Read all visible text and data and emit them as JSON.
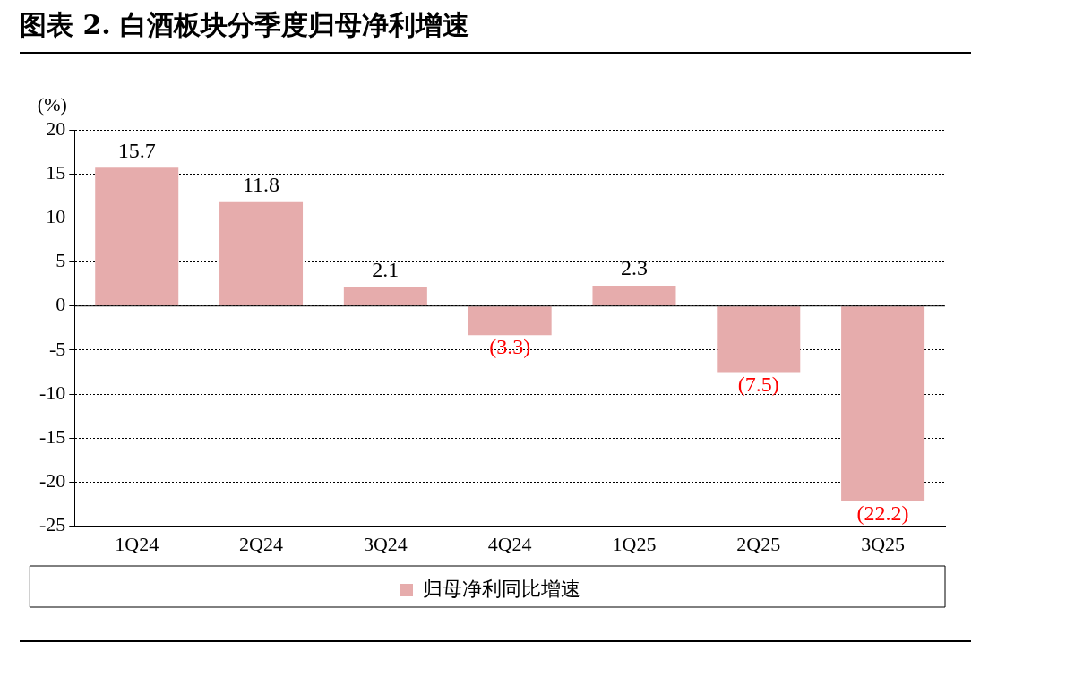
{
  "chart_data": {
    "type": "bar",
    "title": "图表 2. 白酒板块分季度归母净利增速",
    "ylabel": "(%)",
    "categories": [
      "1Q24",
      "2Q24",
      "3Q24",
      "4Q24",
      "1Q25",
      "2Q25",
      "3Q25"
    ],
    "series": [
      {
        "name": "归母净利同比增速",
        "color": "#e6acac",
        "values": [
          15.7,
          11.8,
          2.1,
          -3.3,
          2.3,
          -7.5,
          -22.2
        ],
        "value_labels": [
          "15.7",
          "11.8",
          "2.1",
          "(3.3)",
          "2.3",
          "(7.5)",
          "(22.2)"
        ]
      }
    ],
    "ylim": [
      -25,
      20
    ],
    "yticks": [
      -25,
      -20,
      -15,
      -10,
      -5,
      0,
      5,
      10,
      15,
      20
    ],
    "grid": "y",
    "legend": "bottom"
  }
}
